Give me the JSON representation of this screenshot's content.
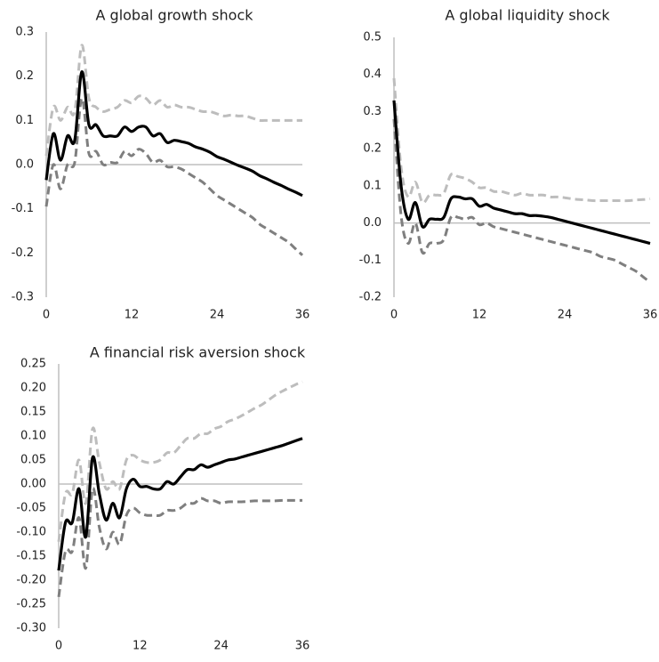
{
  "chart_data": [
    {
      "type": "line",
      "title": "A global growth shock",
      "x": [
        0,
        1,
        2,
        3,
        4,
        5,
        6,
        7,
        8,
        9,
        10,
        11,
        12,
        13,
        14,
        15,
        16,
        17,
        18,
        19,
        20,
        21,
        22,
        23,
        24,
        25,
        26,
        27,
        28,
        29,
        30,
        31,
        32,
        33,
        34,
        35,
        36
      ],
      "xlim": [
        0,
        36
      ],
      "xticks": [
        0,
        12,
        24,
        36
      ],
      "ylim": [
        -0.3,
        0.3
      ],
      "yticks": [
        -0.3,
        -0.2,
        -0.1,
        {
          "value": 0,
          "label": "0.0"
        },
        0.1,
        0.2,
        0.3
      ],
      "series": [
        {
          "color": "#bdbdbd",
          "dashed": true,
          "values": [
            0.02,
            0.13,
            0.1,
            0.13,
            0.12,
            0.27,
            0.15,
            0.13,
            0.12,
            0.125,
            0.13,
            0.145,
            0.14,
            0.155,
            0.15,
            0.135,
            0.145,
            0.13,
            0.135,
            0.13,
            0.13,
            0.125,
            0.12,
            0.12,
            0.115,
            0.11,
            0.112,
            0.11,
            0.11,
            0.105,
            0.1,
            0.1,
            0.1,
            0.1,
            0.1,
            0.1,
            0.1
          ]
        },
        {
          "color": "#7f7f7f",
          "dashed": true,
          "values": [
            -0.095,
            0.0,
            -0.055,
            0.0,
            0.005,
            0.15,
            0.025,
            0.03,
            0.0,
            0.005,
            0.005,
            0.03,
            0.02,
            0.035,
            0.025,
            0.005,
            0.01,
            -0.005,
            -0.005,
            -0.01,
            -0.02,
            -0.03,
            -0.04,
            -0.055,
            -0.07,
            -0.08,
            -0.09,
            -0.1,
            -0.11,
            -0.12,
            -0.135,
            -0.145,
            -0.155,
            -0.165,
            -0.175,
            -0.19,
            -0.205
          ]
        },
        {
          "color": "#000000",
          "dashed": false,
          "values": [
            -0.035,
            0.07,
            0.01,
            0.065,
            0.055,
            0.21,
            0.09,
            0.09,
            0.065,
            0.065,
            0.065,
            0.085,
            0.075,
            0.085,
            0.085,
            0.065,
            0.07,
            0.05,
            0.055,
            0.052,
            0.048,
            0.04,
            0.035,
            0.028,
            0.018,
            0.012,
            0.005,
            -0.002,
            -0.008,
            -0.015,
            -0.025,
            -0.032,
            -0.04,
            -0.047,
            -0.055,
            -0.062,
            -0.07
          ]
        }
      ]
    },
    {
      "type": "line",
      "title": "A global liquidity shock",
      "x": [
        0,
        1,
        2,
        3,
        4,
        5,
        6,
        7,
        8,
        9,
        10,
        11,
        12,
        13,
        14,
        15,
        16,
        17,
        18,
        19,
        20,
        21,
        22,
        23,
        24,
        25,
        26,
        27,
        28,
        29,
        30,
        31,
        32,
        33,
        34,
        35,
        36
      ],
      "xlim": [
        0,
        36
      ],
      "xticks": [
        0,
        12,
        24,
        36
      ],
      "ylim": [
        -0.2,
        0.5
      ],
      "yticks": [
        -0.2,
        -0.1,
        {
          "value": 0,
          "label": "0.0"
        },
        0.1,
        0.2,
        0.3,
        0.4,
        0.5
      ],
      "series": [
        {
          "color": "#bdbdbd",
          "dashed": true,
          "values": [
            0.39,
            0.15,
            0.07,
            0.11,
            0.055,
            0.075,
            0.075,
            0.08,
            0.13,
            0.125,
            0.12,
            0.11,
            0.095,
            0.095,
            0.085,
            0.085,
            0.08,
            0.075,
            0.08,
            0.075,
            0.075,
            0.075,
            0.07,
            0.07,
            0.068,
            0.065,
            0.063,
            0.062,
            0.06,
            0.06,
            0.06,
            0.06,
            0.06,
            0.06,
            0.062,
            0.063,
            0.065
          ]
        },
        {
          "color": "#7f7f7f",
          "dashed": true,
          "values": [
            0.28,
            0.02,
            -0.055,
            0.0,
            -0.08,
            -0.055,
            -0.055,
            -0.045,
            0.015,
            0.015,
            0.01,
            0.015,
            -0.005,
            0.0,
            -0.01,
            -0.015,
            -0.02,
            -0.025,
            -0.03,
            -0.035,
            -0.04,
            -0.045,
            -0.05,
            -0.055,
            -0.06,
            -0.065,
            -0.07,
            -0.075,
            -0.08,
            -0.09,
            -0.095,
            -0.1,
            -0.11,
            -0.12,
            -0.13,
            -0.145,
            -0.16
          ]
        },
        {
          "color": "#000000",
          "dashed": false,
          "values": [
            0.33,
            0.1,
            0.01,
            0.055,
            -0.01,
            0.01,
            0.01,
            0.015,
            0.065,
            0.07,
            0.065,
            0.065,
            0.045,
            0.05,
            0.04,
            0.035,
            0.03,
            0.025,
            0.025,
            0.02,
            0.02,
            0.018,
            0.015,
            0.01,
            0.005,
            0.0,
            -0.005,
            -0.01,
            -0.015,
            -0.02,
            -0.025,
            -0.03,
            -0.035,
            -0.04,
            -0.045,
            -0.05,
            -0.055
          ]
        }
      ]
    },
    {
      "type": "line",
      "title": "A financial risk aversion shock",
      "x": [
        0,
        1,
        2,
        3,
        4,
        5,
        6,
        7,
        8,
        9,
        10,
        11,
        12,
        13,
        14,
        15,
        16,
        17,
        18,
        19,
        20,
        21,
        22,
        23,
        24,
        25,
        26,
        27,
        28,
        29,
        30,
        31,
        32,
        33,
        34,
        35,
        36
      ],
      "xlim": [
        0,
        36
      ],
      "xticks": [
        0,
        12,
        24,
        36
      ],
      "ylim": [
        -0.3,
        0.25
      ],
      "yticks": [
        {
          "value": -0.3,
          "label": "-0.30"
        },
        -0.25,
        {
          "value": -0.2,
          "label": "-0.20"
        },
        -0.15,
        {
          "value": -0.1,
          "label": "-0.10"
        },
        -0.05,
        {
          "value": 0,
          "label": "0.00"
        },
        0.05,
        {
          "value": 0.1,
          "label": "0.10"
        },
        0.15,
        {
          "value": 0.2,
          "label": "0.20"
        },
        0.25
      ],
      "series": [
        {
          "color": "#bdbdbd",
          "dashed": true,
          "values": [
            -0.12,
            -0.02,
            -0.02,
            0.05,
            -0.04,
            0.115,
            0.045,
            -0.01,
            0.005,
            -0.01,
            0.05,
            0.06,
            0.05,
            0.045,
            0.045,
            0.05,
            0.065,
            0.065,
            0.08,
            0.095,
            0.095,
            0.105,
            0.105,
            0.115,
            0.12,
            0.13,
            0.135,
            0.142,
            0.15,
            0.158,
            0.165,
            0.175,
            0.185,
            0.193,
            0.2,
            0.207,
            0.213
          ]
        },
        {
          "color": "#7f7f7f",
          "dashed": true,
          "values": [
            -0.235,
            -0.14,
            -0.14,
            -0.07,
            -0.175,
            -0.01,
            -0.09,
            -0.135,
            -0.1,
            -0.125,
            -0.065,
            -0.05,
            -0.06,
            -0.065,
            -0.065,
            -0.065,
            -0.055,
            -0.055,
            -0.05,
            -0.04,
            -0.04,
            -0.03,
            -0.035,
            -0.035,
            -0.04,
            -0.037,
            -0.037,
            -0.037,
            -0.036,
            -0.035,
            -0.035,
            -0.035,
            -0.035,
            -0.034,
            -0.034,
            -0.034,
            -0.034
          ]
        },
        {
          "color": "#000000",
          "dashed": false,
          "values": [
            -0.18,
            -0.08,
            -0.08,
            -0.01,
            -0.11,
            0.055,
            -0.02,
            -0.075,
            -0.04,
            -0.07,
            -0.01,
            0.01,
            -0.005,
            -0.005,
            -0.01,
            -0.01,
            0.005,
            0.0,
            0.015,
            0.03,
            0.03,
            0.04,
            0.035,
            0.04,
            0.045,
            0.05,
            0.052,
            0.056,
            0.06,
            0.064,
            0.068,
            0.072,
            0.076,
            0.08,
            0.085,
            0.09,
            0.095
          ]
        }
      ]
    }
  ]
}
